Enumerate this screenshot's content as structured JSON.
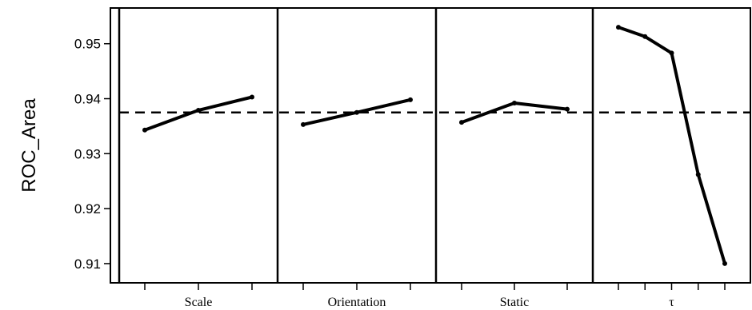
{
  "chart_data": {
    "type": "line",
    "title": "",
    "xlabel": "",
    "ylabel": "ROC_Area",
    "ylim": [
      0.9065,
      0.9565
    ],
    "yticks": [
      0.91,
      0.92,
      0.93,
      0.94,
      0.95
    ],
    "yticklabels": [
      "0.91",
      "0.92",
      "0.93",
      "0.94",
      "0.95"
    ],
    "reference_line": {
      "y": 0.9375,
      "style": "dashed"
    },
    "grid": false,
    "legend": "none",
    "panels": [
      {
        "label": "Scale",
        "values": [
          0.9343,
          0.9379,
          0.9403
        ]
      },
      {
        "label": "Orientation",
        "values": [
          0.9353,
          0.9375,
          0.9398
        ]
      },
      {
        "label": "Static",
        "values": [
          0.9357,
          0.9392,
          0.9381
        ]
      },
      {
        "label": "τ",
        "values": [
          0.953,
          0.9513,
          0.9483,
          0.9262,
          0.91
        ]
      }
    ],
    "colors": {
      "line": "#000000",
      "background": "#ffffff"
    }
  }
}
